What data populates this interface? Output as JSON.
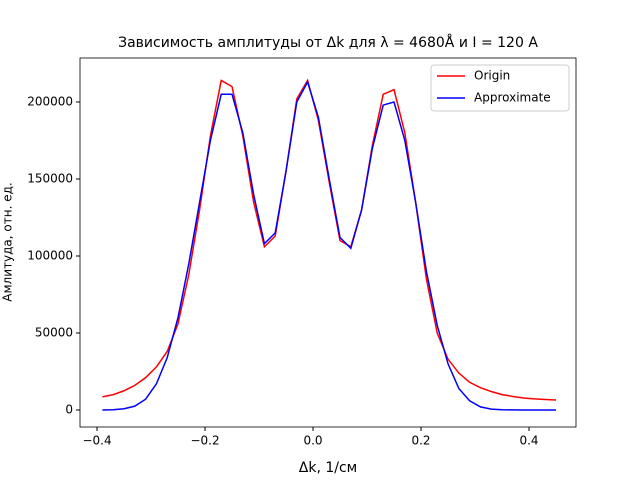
{
  "chart_data": {
    "type": "line",
    "title": "Зависимость амплитуды от Δk для λ = 4680Å и I = 120 А",
    "x_label": "Δk, 1/см",
    "y_label": "Амлитуда, отн. ед.",
    "x": [
      -0.39,
      -0.37,
      -0.35,
      -0.33,
      -0.31,
      -0.29,
      -0.27,
      -0.25,
      -0.23,
      -0.21,
      -0.19,
      -0.17,
      -0.15,
      -0.13,
      -0.11,
      -0.09,
      -0.07,
      -0.05,
      -0.03,
      -0.01,
      0.01,
      0.03,
      0.05,
      0.07,
      0.09,
      0.11,
      0.13,
      0.15,
      0.17,
      0.19,
      0.21,
      0.23,
      0.25,
      0.27,
      0.29,
      0.31,
      0.33,
      0.35,
      0.37,
      0.39,
      0.41,
      0.43,
      0.45
    ],
    "series": [
      {
        "name": "Origin",
        "color": "#ff0000",
        "values": [
          8500,
          10000,
          12500,
          16000,
          21000,
          28000,
          38000,
          56000,
          88000,
          130000,
          178000,
          214000,
          210000,
          178000,
          135000,
          106000,
          113000,
          155000,
          202000,
          214000,
          188000,
          148000,
          110000,
          106000,
          130000,
          172000,
          205000,
          208000,
          180000,
          135000,
          85000,
          50000,
          33000,
          24000,
          18000,
          14500,
          12000,
          10000,
          8800,
          7800,
          7200,
          6800,
          6500
        ]
      },
      {
        "name": "Approximate",
        "color": "#0000ff",
        "values": [
          0,
          200,
          800,
          2500,
          7000,
          17000,
          34000,
          60000,
          95000,
          135000,
          175000,
          205000,
          205000,
          180000,
          140000,
          108000,
          115000,
          155000,
          200000,
          213000,
          190000,
          150000,
          112000,
          105000,
          130000,
          170000,
          198000,
          200000,
          175000,
          135000,
          90000,
          55000,
          30000,
          14000,
          6000,
          2000,
          600,
          200,
          50,
          0,
          0,
          0,
          0
        ]
      }
    ],
    "xlim": [
      -0.4315,
      0.487
    ],
    "ylim": [
      -11039,
      228571
    ],
    "xticks": [
      {
        "value": -0.4,
        "label": "−0.4"
      },
      {
        "value": -0.2,
        "label": "−0.2"
      },
      {
        "value": 0,
        "label": "0.0"
      },
      {
        "value": 0.2,
        "label": "0.2"
      },
      {
        "value": 0.4,
        "label": "0.4"
      }
    ],
    "yticks": [
      0,
      50000,
      100000,
      150000,
      200000
    ],
    "legend": "upper-right"
  }
}
